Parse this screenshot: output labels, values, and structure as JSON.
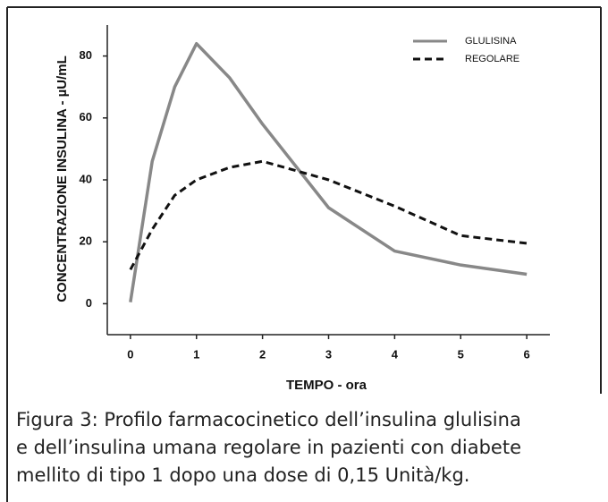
{
  "chart_data": {
    "type": "line",
    "x_label": "TEMPO - ora",
    "y_label": "CONCENTRAZIONE INSULINA - µU/mL",
    "xlim": [
      -0.35,
      6.35
    ],
    "xticks": [
      0,
      1,
      2,
      3,
      4,
      5,
      6
    ],
    "ylim": [
      -10,
      90
    ],
    "yticks": [
      0,
      20,
      40,
      60,
      80
    ],
    "legend": "top-right",
    "series": [
      {
        "name": "GLULISINA",
        "color": "#888888",
        "dash": false,
        "x": [
          0,
          0.33,
          0.67,
          1,
          1.5,
          2,
          3,
          4,
          5,
          6
        ],
        "values": [
          0.5,
          46,
          70,
          84,
          73,
          58,
          31,
          17,
          12.5,
          9.5
        ]
      },
      {
        "name": "REGOLARE",
        "color": "#111111",
        "dash": true,
        "x": [
          0,
          0.33,
          0.67,
          1,
          1.5,
          2,
          2.5,
          3,
          4,
          5,
          6
        ],
        "values": [
          11,
          24,
          35,
          40,
          44,
          46,
          43,
          40,
          31.5,
          22,
          19.5
        ]
      }
    ]
  },
  "caption": [
    "Figura 3: Profilo farmacocinetico dell’insulina glulisina",
    "e dell’insulina umana regolare in pazienti con diabete",
    "mellito di tipo 1 dopo una dose di 0,15 Unità/kg."
  ]
}
